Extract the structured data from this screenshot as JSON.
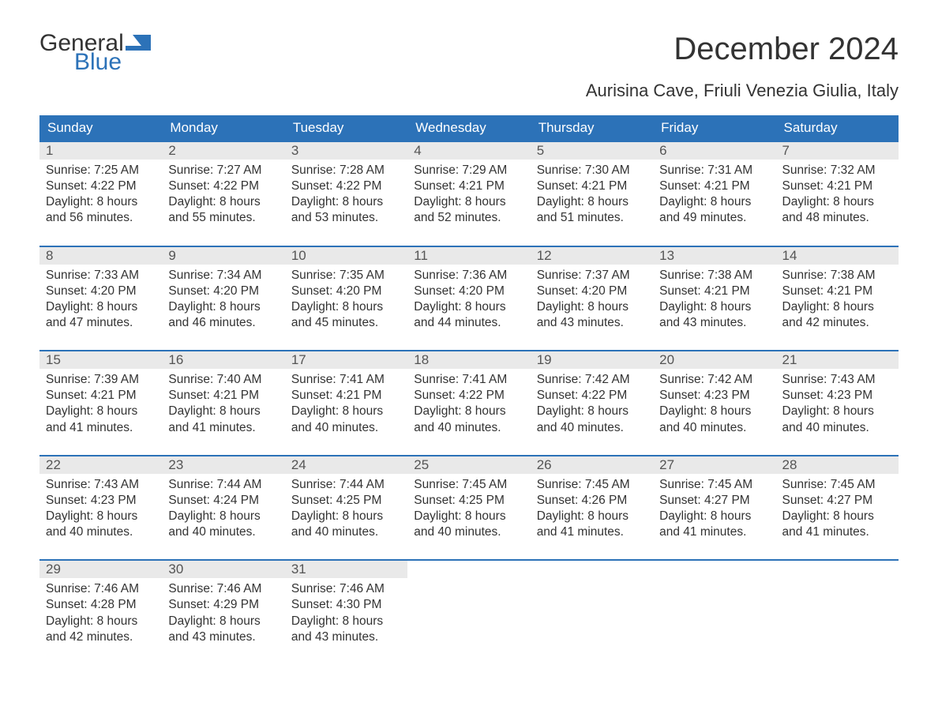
{
  "brand": {
    "line1": "General",
    "line2": "Blue",
    "accent_color": "#2c72b8"
  },
  "title": "December 2024",
  "location": "Aurisina Cave, Friuli Venezia Giulia, Italy",
  "colors": {
    "header_bg": "#2c72b8",
    "header_text": "#ffffff",
    "daynum_bg": "#e9e9e9",
    "week_border": "#2c72b8",
    "text": "#333333",
    "background": "#ffffff"
  },
  "fontsize": {
    "title": 40,
    "subtitle": 22,
    "header": 17,
    "daynum": 17,
    "body": 15.5
  },
  "calendar": {
    "type": "table",
    "days_of_week": [
      "Sunday",
      "Monday",
      "Tuesday",
      "Wednesday",
      "Thursday",
      "Friday",
      "Saturday"
    ],
    "weeks": [
      [
        {
          "n": "1",
          "sunrise": "Sunrise: 7:25 AM",
          "sunset": "Sunset: 4:22 PM",
          "d1": "Daylight: 8 hours",
          "d2": "and 56 minutes."
        },
        {
          "n": "2",
          "sunrise": "Sunrise: 7:27 AM",
          "sunset": "Sunset: 4:22 PM",
          "d1": "Daylight: 8 hours",
          "d2": "and 55 minutes."
        },
        {
          "n": "3",
          "sunrise": "Sunrise: 7:28 AM",
          "sunset": "Sunset: 4:22 PM",
          "d1": "Daylight: 8 hours",
          "d2": "and 53 minutes."
        },
        {
          "n": "4",
          "sunrise": "Sunrise: 7:29 AM",
          "sunset": "Sunset: 4:21 PM",
          "d1": "Daylight: 8 hours",
          "d2": "and 52 minutes."
        },
        {
          "n": "5",
          "sunrise": "Sunrise: 7:30 AM",
          "sunset": "Sunset: 4:21 PM",
          "d1": "Daylight: 8 hours",
          "d2": "and 51 minutes."
        },
        {
          "n": "6",
          "sunrise": "Sunrise: 7:31 AM",
          "sunset": "Sunset: 4:21 PM",
          "d1": "Daylight: 8 hours",
          "d2": "and 49 minutes."
        },
        {
          "n": "7",
          "sunrise": "Sunrise: 7:32 AM",
          "sunset": "Sunset: 4:21 PM",
          "d1": "Daylight: 8 hours",
          "d2": "and 48 minutes."
        }
      ],
      [
        {
          "n": "8",
          "sunrise": "Sunrise: 7:33 AM",
          "sunset": "Sunset: 4:20 PM",
          "d1": "Daylight: 8 hours",
          "d2": "and 47 minutes."
        },
        {
          "n": "9",
          "sunrise": "Sunrise: 7:34 AM",
          "sunset": "Sunset: 4:20 PM",
          "d1": "Daylight: 8 hours",
          "d2": "and 46 minutes."
        },
        {
          "n": "10",
          "sunrise": "Sunrise: 7:35 AM",
          "sunset": "Sunset: 4:20 PM",
          "d1": "Daylight: 8 hours",
          "d2": "and 45 minutes."
        },
        {
          "n": "11",
          "sunrise": "Sunrise: 7:36 AM",
          "sunset": "Sunset: 4:20 PM",
          "d1": "Daylight: 8 hours",
          "d2": "and 44 minutes."
        },
        {
          "n": "12",
          "sunrise": "Sunrise: 7:37 AM",
          "sunset": "Sunset: 4:20 PM",
          "d1": "Daylight: 8 hours",
          "d2": "and 43 minutes."
        },
        {
          "n": "13",
          "sunrise": "Sunrise: 7:38 AM",
          "sunset": "Sunset: 4:21 PM",
          "d1": "Daylight: 8 hours",
          "d2": "and 43 minutes."
        },
        {
          "n": "14",
          "sunrise": "Sunrise: 7:38 AM",
          "sunset": "Sunset: 4:21 PM",
          "d1": "Daylight: 8 hours",
          "d2": "and 42 minutes."
        }
      ],
      [
        {
          "n": "15",
          "sunrise": "Sunrise: 7:39 AM",
          "sunset": "Sunset: 4:21 PM",
          "d1": "Daylight: 8 hours",
          "d2": "and 41 minutes."
        },
        {
          "n": "16",
          "sunrise": "Sunrise: 7:40 AM",
          "sunset": "Sunset: 4:21 PM",
          "d1": "Daylight: 8 hours",
          "d2": "and 41 minutes."
        },
        {
          "n": "17",
          "sunrise": "Sunrise: 7:41 AM",
          "sunset": "Sunset: 4:21 PM",
          "d1": "Daylight: 8 hours",
          "d2": "and 40 minutes."
        },
        {
          "n": "18",
          "sunrise": "Sunrise: 7:41 AM",
          "sunset": "Sunset: 4:22 PM",
          "d1": "Daylight: 8 hours",
          "d2": "and 40 minutes."
        },
        {
          "n": "19",
          "sunrise": "Sunrise: 7:42 AM",
          "sunset": "Sunset: 4:22 PM",
          "d1": "Daylight: 8 hours",
          "d2": "and 40 minutes."
        },
        {
          "n": "20",
          "sunrise": "Sunrise: 7:42 AM",
          "sunset": "Sunset: 4:23 PM",
          "d1": "Daylight: 8 hours",
          "d2": "and 40 minutes."
        },
        {
          "n": "21",
          "sunrise": "Sunrise: 7:43 AM",
          "sunset": "Sunset: 4:23 PM",
          "d1": "Daylight: 8 hours",
          "d2": "and 40 minutes."
        }
      ],
      [
        {
          "n": "22",
          "sunrise": "Sunrise: 7:43 AM",
          "sunset": "Sunset: 4:23 PM",
          "d1": "Daylight: 8 hours",
          "d2": "and 40 minutes."
        },
        {
          "n": "23",
          "sunrise": "Sunrise: 7:44 AM",
          "sunset": "Sunset: 4:24 PM",
          "d1": "Daylight: 8 hours",
          "d2": "and 40 minutes."
        },
        {
          "n": "24",
          "sunrise": "Sunrise: 7:44 AM",
          "sunset": "Sunset: 4:25 PM",
          "d1": "Daylight: 8 hours",
          "d2": "and 40 minutes."
        },
        {
          "n": "25",
          "sunrise": "Sunrise: 7:45 AM",
          "sunset": "Sunset: 4:25 PM",
          "d1": "Daylight: 8 hours",
          "d2": "and 40 minutes."
        },
        {
          "n": "26",
          "sunrise": "Sunrise: 7:45 AM",
          "sunset": "Sunset: 4:26 PM",
          "d1": "Daylight: 8 hours",
          "d2": "and 41 minutes."
        },
        {
          "n": "27",
          "sunrise": "Sunrise: 7:45 AM",
          "sunset": "Sunset: 4:27 PM",
          "d1": "Daylight: 8 hours",
          "d2": "and 41 minutes."
        },
        {
          "n": "28",
          "sunrise": "Sunrise: 7:45 AM",
          "sunset": "Sunset: 4:27 PM",
          "d1": "Daylight: 8 hours",
          "d2": "and 41 minutes."
        }
      ],
      [
        {
          "n": "29",
          "sunrise": "Sunrise: 7:46 AM",
          "sunset": "Sunset: 4:28 PM",
          "d1": "Daylight: 8 hours",
          "d2": "and 42 minutes."
        },
        {
          "n": "30",
          "sunrise": "Sunrise: 7:46 AM",
          "sunset": "Sunset: 4:29 PM",
          "d1": "Daylight: 8 hours",
          "d2": "and 43 minutes."
        },
        {
          "n": "31",
          "sunrise": "Sunrise: 7:46 AM",
          "sunset": "Sunset: 4:30 PM",
          "d1": "Daylight: 8 hours",
          "d2": "and 43 minutes."
        },
        null,
        null,
        null,
        null
      ]
    ]
  }
}
